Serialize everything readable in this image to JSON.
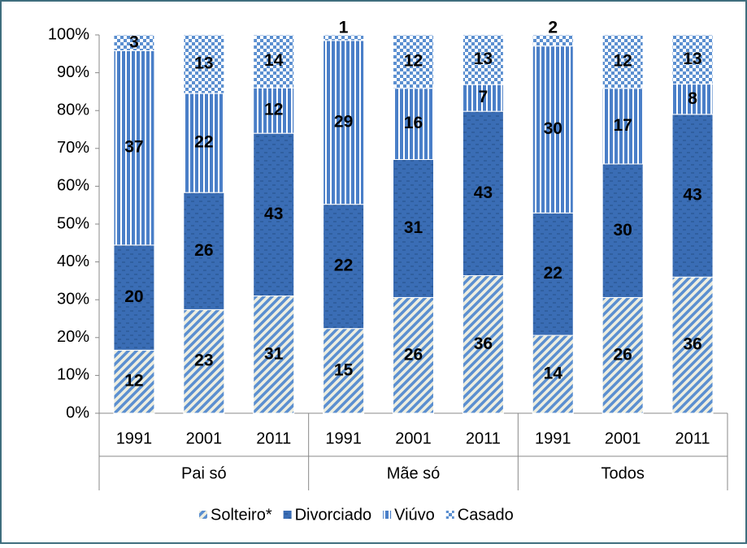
{
  "chart_data": {
    "type": "bar",
    "stack": "percent",
    "categories": [
      "1991",
      "2001",
      "2011",
      "1991",
      "2001",
      "2011",
      "1991",
      "2001",
      "2011"
    ],
    "groups": [
      "Pai só",
      "Mãe só",
      "Todos"
    ],
    "series": [
      {
        "name": "Solteiro*",
        "color": "#5b8fd0",
        "values": [
          12,
          23,
          31,
          15,
          26,
          36,
          14,
          26,
          36
        ]
      },
      {
        "name": "Divorciado",
        "color": "#3a6db5",
        "values": [
          20,
          26,
          43,
          22,
          31,
          43,
          22,
          30,
          43
        ]
      },
      {
        "name": "Viúvo",
        "color": "#4a7fc8",
        "values": [
          37,
          22,
          12,
          29,
          16,
          7,
          30,
          17,
          8
        ]
      },
      {
        "name": "Casado",
        "color": "#5b8fd0",
        "values": [
          3,
          13,
          14,
          1,
          12,
          13,
          2,
          12,
          13
        ]
      }
    ],
    "ylim": [
      0,
      100
    ],
    "yticks": [
      {
        "value": 0,
        "label": "0%"
      },
      {
        "value": 10,
        "label": "10%"
      },
      {
        "value": 20,
        "label": "20%"
      },
      {
        "value": 30,
        "label": "30%"
      },
      {
        "value": 40,
        "label": "40%"
      },
      {
        "value": 50,
        "label": "50%"
      },
      {
        "value": 60,
        "label": "60%"
      },
      {
        "value": 70,
        "label": "70%"
      },
      {
        "value": 80,
        "label": "80%"
      },
      {
        "value": 90,
        "label": "90%"
      },
      {
        "value": 100,
        "label": "100%"
      }
    ],
    "legend": "bottom"
  }
}
